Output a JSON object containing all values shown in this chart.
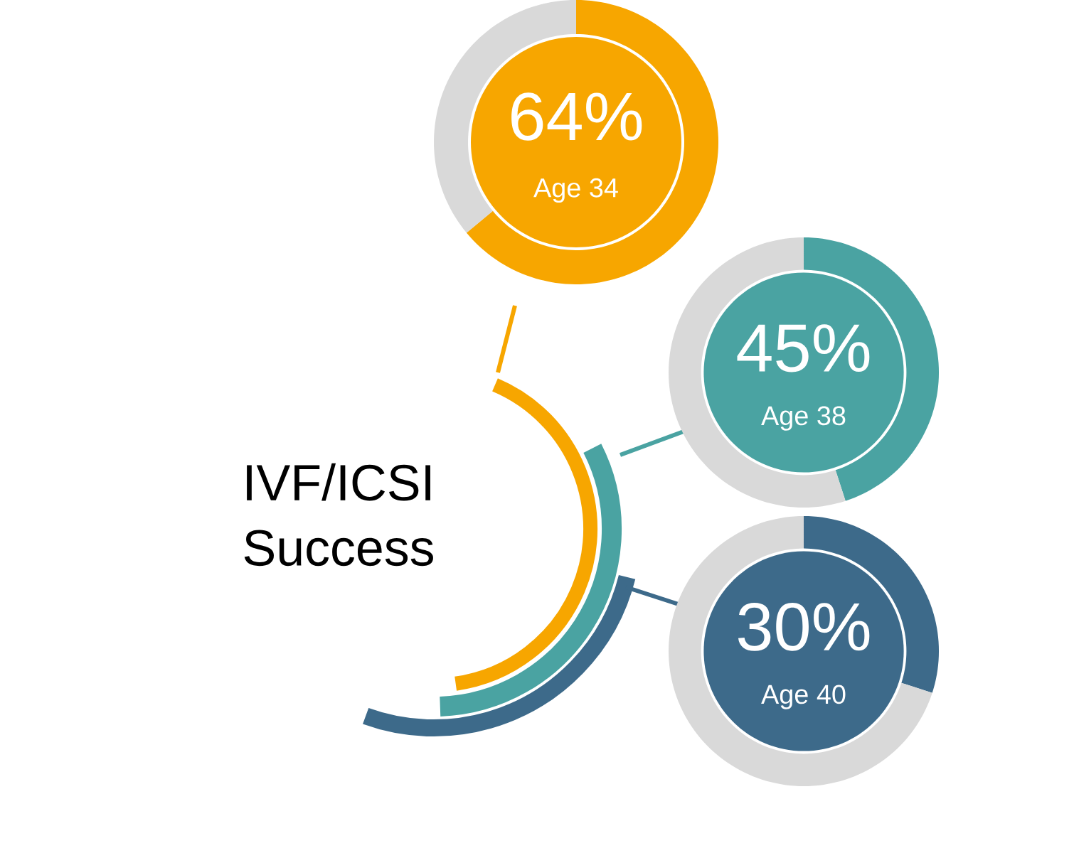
{
  "chart_data": [
    {
      "type": "other",
      "title": "IVF/ICSI Success"
    },
    {
      "type": "donut",
      "categories": [
        null,
        null
      ],
      "values": [
        64,
        36
      ],
      "colors": [
        "#f7a600",
        "#d9d9d9"
      ],
      "value_labels": [
        "64%",
        null
      ],
      "annotations": [
        "Age 34"
      ]
    },
    {
      "type": "donut",
      "categories": [
        null,
        null
      ],
      "values": [
        45,
        55
      ],
      "colors": [
        "#4aa3a2",
        "#d9d9d9"
      ],
      "value_labels": [
        "45%",
        null
      ],
      "annotations": [
        "Age 38"
      ]
    },
    {
      "type": "donut",
      "categories": [
        null,
        null
      ],
      "values": [
        30,
        70
      ],
      "colors": [
        "#3d6a8a",
        "#d9d9d9"
      ],
      "value_labels": [
        "30%",
        null
      ],
      "annotations": [
        "Age 40"
      ]
    }
  ]
}
